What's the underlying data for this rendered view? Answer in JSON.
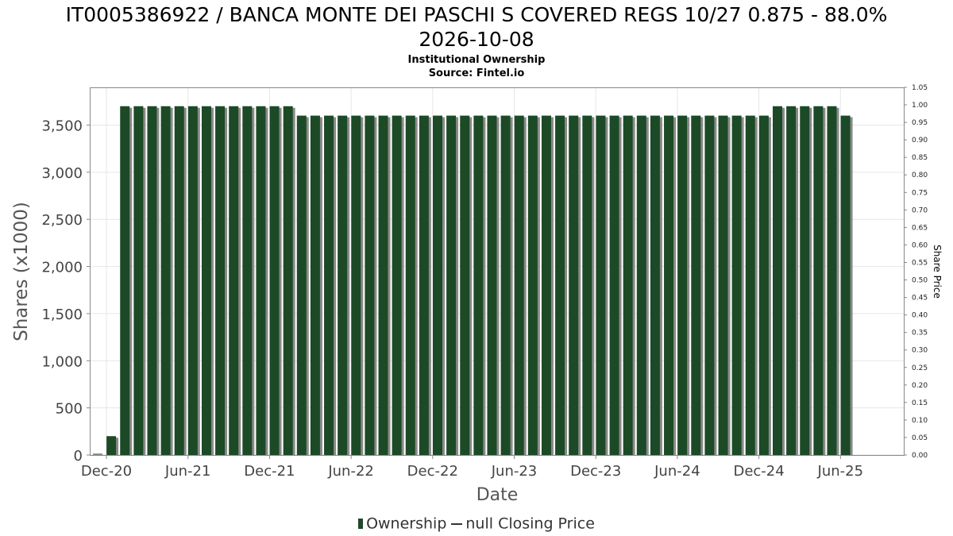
{
  "header": {
    "title_line1": "IT0005386922 / BANCA MONTE DEI PASCHI S COVERED REGS 10/27 0.875 - 88.0%",
    "title_line2": "2026-10-08",
    "subtitle": "Institutional Ownership",
    "source": "Source: Fintel.io"
  },
  "legend": {
    "ownership": "Ownership",
    "price": "null Closing Price"
  },
  "colors": {
    "bar": "#1c4a26",
    "bar_shadow": "#8a8a8a",
    "grid": "#e6e6e6",
    "axis": "#888888"
  },
  "chart_data": {
    "type": "bar",
    "xlabel": "Date",
    "ylabel": "Shares (x1000)",
    "y2label": "Share Price",
    "x_ticks": [
      "Dec-20",
      "Jun-21",
      "Dec-21",
      "Jun-22",
      "Dec-22",
      "Jun-23",
      "Dec-23",
      "Jun-24",
      "Dec-24",
      "Jun-25"
    ],
    "y_ticks": [
      "0",
      "500",
      "1,000",
      "1,500",
      "2,000",
      "2,500",
      "3,000",
      "3,500"
    ],
    "y2_ticks": [
      "0.00",
      "0.05",
      "0.10",
      "0.15",
      "0.20",
      "0.25",
      "0.30",
      "0.35",
      "0.40",
      "0.45",
      "0.50",
      "0.55",
      "0.60",
      "0.65",
      "0.70",
      "0.75",
      "0.80",
      "0.85",
      "0.90",
      "0.95",
      "1.00",
      "1.05"
    ],
    "ylim": [
      0,
      3900
    ],
    "y2lim": [
      0,
      1.05
    ],
    "grid": true,
    "legend_position": "bottom",
    "series": [
      {
        "name": "Ownership",
        "values": [
          0,
          200,
          3700,
          3700,
          3700,
          3700,
          3700,
          3700,
          3700,
          3700,
          3700,
          3700,
          3700,
          3700,
          3700,
          3600,
          3600,
          3600,
          3600,
          3600,
          3600,
          3600,
          3600,
          3600,
          3600,
          3600,
          3600,
          3600,
          3600,
          3600,
          3600,
          3600,
          3600,
          3600,
          3600,
          3600,
          3600,
          3600,
          3600,
          3600,
          3600,
          3600,
          3600,
          3600,
          3600,
          3600,
          3600,
          3600,
          3600,
          3600,
          3700,
          3700,
          3700,
          3700,
          3700,
          3600
        ]
      }
    ]
  }
}
